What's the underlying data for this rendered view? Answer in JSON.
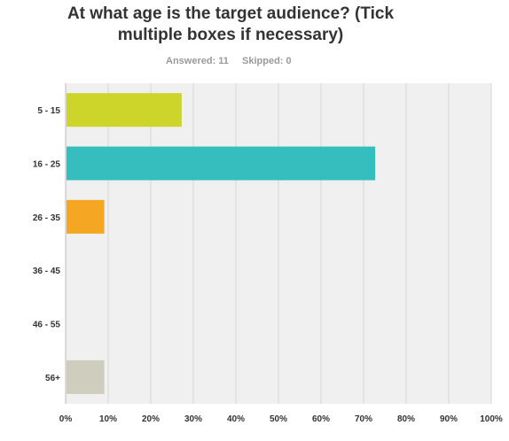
{
  "question": {
    "title_line1": "At what age is the target audience? (Tick",
    "title_line2": "multiple boxes if necessary)",
    "answered": "Answered: 11",
    "skipped": "Skipped: 0"
  },
  "chart_data": {
    "type": "bar",
    "orientation": "horizontal",
    "categories": [
      "5 - 15",
      "16 - 25",
      "26 - 35",
      "36 - 45",
      "46 - 55",
      "56+"
    ],
    "values": [
      27.27,
      72.73,
      9.09,
      0,
      0,
      9.09
    ],
    "colors": [
      "#cdd52a",
      "#36bdbd",
      "#f5a623",
      "#cdd52a",
      "#36bdbd",
      "#cfcdbe"
    ],
    "xlim": [
      0,
      100
    ],
    "xticks": [
      "0%",
      "10%",
      "20%",
      "30%",
      "40%",
      "50%",
      "60%",
      "70%",
      "80%",
      "90%",
      "100%"
    ],
    "grid": true,
    "plot_background": "#f0f0f0"
  }
}
